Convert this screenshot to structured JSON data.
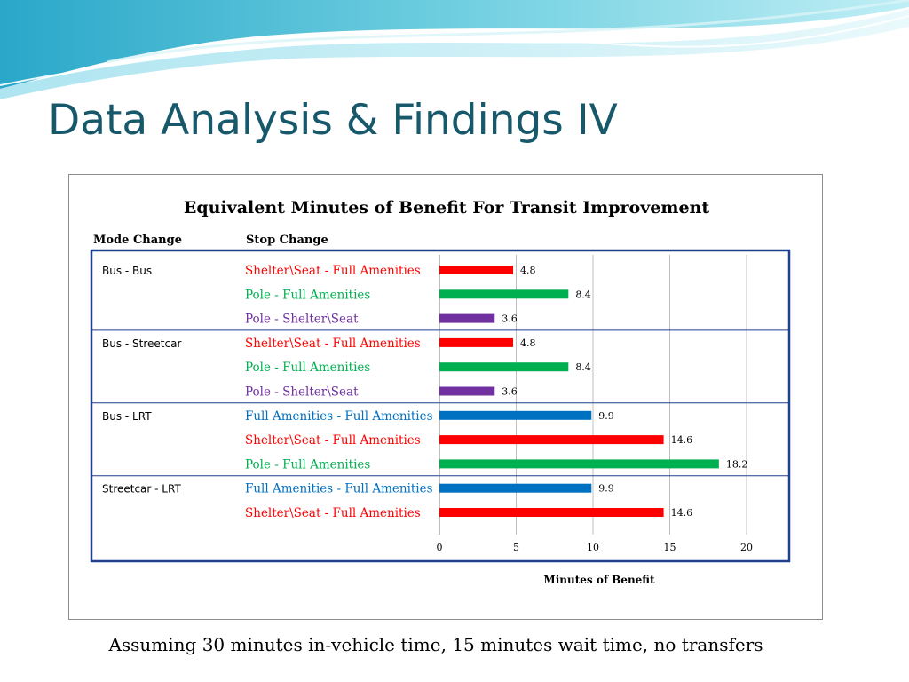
{
  "slide": {
    "title": "Data Analysis & Findings IV",
    "footnote": "Assuming 30 minutes in-vehicle time, 15 minutes wait time, no transfers"
  },
  "chart_data": {
    "type": "bar",
    "orientation": "horizontal",
    "title": "Equivalent Minutes of Benefit For Transit Improvement",
    "xlabel": "Minutes of Benefit",
    "ylabel": "",
    "column_headers": {
      "group": "Mode Change",
      "category": "Stop Change"
    },
    "xlim": [
      0,
      20
    ],
    "xticks": [
      "0",
      "5",
      "10",
      "15",
      "20"
    ],
    "grid": "vertical",
    "colors": {
      "Shelter\\Seat - Full Amenities": "#ff0000",
      "Pole - Full Amenities": "#00b050",
      "Pole - Shelter\\Seat": "#7030a0",
      "Full Amenities - Full Amenities": "#0070c0"
    },
    "groups": [
      {
        "name": "Bus - Bus",
        "bars": [
          {
            "label": "Shelter\\Seat - Full Amenities",
            "value": 4.8,
            "value_label": "4.8"
          },
          {
            "label": "Pole - Full Amenities",
            "value": 8.4,
            "value_label": "8.4"
          },
          {
            "label": "Pole - Shelter\\Seat",
            "value": 3.6,
            "value_label": "3.6"
          }
        ]
      },
      {
        "name": "Bus - Streetcar",
        "bars": [
          {
            "label": "Shelter\\Seat - Full Amenities",
            "value": 4.8,
            "value_label": "4.8"
          },
          {
            "label": "Pole - Full Amenities",
            "value": 8.4,
            "value_label": "8.4"
          },
          {
            "label": "Pole - Shelter\\Seat",
            "value": 3.6,
            "value_label": "3.6"
          }
        ]
      },
      {
        "name": "Bus - LRT",
        "bars": [
          {
            "label": "Full Amenities - Full Amenities",
            "value": 9.9,
            "value_label": "9.9"
          },
          {
            "label": "Shelter\\Seat - Full Amenities",
            "value": 14.6,
            "value_label": "14.6"
          },
          {
            "label": "Pole - Full Amenities",
            "value": 18.2,
            "value_label": "18.2"
          }
        ]
      },
      {
        "name": "Streetcar - LRT",
        "bars": [
          {
            "label": "Full Amenities - Full Amenities",
            "value": 9.9,
            "value_label": "9.9"
          },
          {
            "label": "Shelter\\Seat - Full Amenities",
            "value": 14.6,
            "value_label": "14.6"
          }
        ]
      }
    ]
  }
}
